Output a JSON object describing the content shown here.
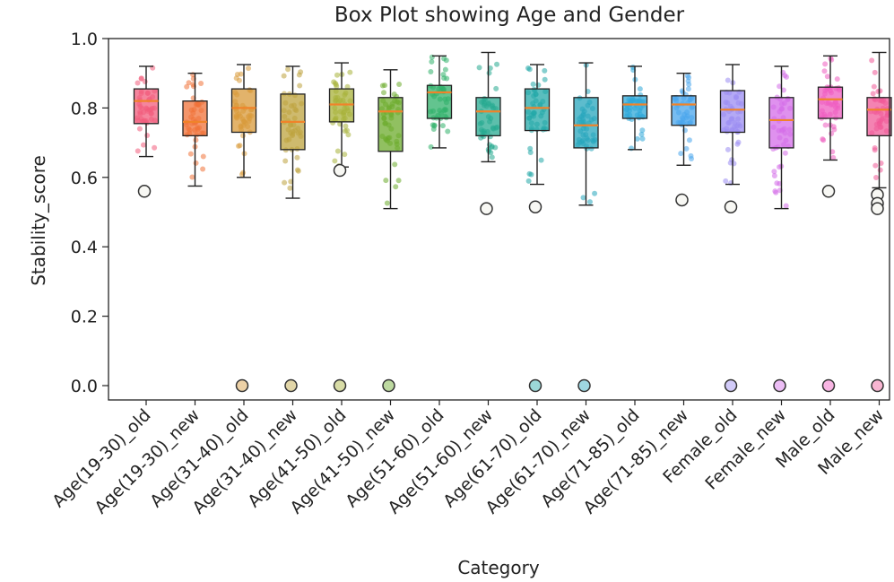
{
  "chart_data": {
    "type": "box",
    "title": "Box Plot showing Age and Gender",
    "xlabel": "Category",
    "ylabel": "Stability_score",
    "ylim": [
      0.0,
      1.0
    ],
    "y_ticks": [
      "0.0",
      "0.2",
      "0.4",
      "0.6",
      "0.8",
      "1.0"
    ],
    "median_color": "#f0832a",
    "categories": [
      {
        "name": "Age(19-30)_old",
        "color": "#f25c7c",
        "whisker_low": 0.66,
        "q1": 0.755,
        "median": 0.82,
        "q3": 0.855,
        "whisker_high": 0.92,
        "outliers": [
          0.56
        ],
        "zero_outliers": false
      },
      {
        "name": "Age(19-30)_new",
        "color": "#f07238",
        "whisker_low": 0.575,
        "q1": 0.72,
        "median": 0.76,
        "q3": 0.82,
        "whisker_high": 0.9,
        "outliers": [],
        "zero_outliers": false
      },
      {
        "name": "Age(31-40)_old",
        "color": "#d89a3a",
        "whisker_low": 0.6,
        "q1": 0.73,
        "median": 0.8,
        "q3": 0.855,
        "whisker_high": 0.925,
        "outliers": [],
        "zero_outliers": true
      },
      {
        "name": "Age(31-40)_new",
        "color": "#bea33e",
        "whisker_low": 0.54,
        "q1": 0.68,
        "median": 0.76,
        "q3": 0.84,
        "whisker_high": 0.92,
        "outliers": [],
        "zero_outliers": true
      },
      {
        "name": "Age(41-50)_old",
        "color": "#a8b23a",
        "whisker_low": 0.63,
        "q1": 0.76,
        "median": 0.81,
        "q3": 0.855,
        "whisker_high": 0.93,
        "outliers": [
          0.62
        ],
        "zero_outliers": true
      },
      {
        "name": "Age(41-50)_new",
        "color": "#6cab2c",
        "whisker_low": 0.51,
        "q1": 0.675,
        "median": 0.79,
        "q3": 0.83,
        "whisker_high": 0.91,
        "outliers": [],
        "zero_outliers": true
      },
      {
        "name": "Age(51-60)_old",
        "color": "#2fb06a",
        "whisker_low": 0.685,
        "q1": 0.77,
        "median": 0.845,
        "q3": 0.865,
        "whisker_high": 0.95,
        "outliers": [],
        "zero_outliers": false
      },
      {
        "name": "Age(51-60)_new",
        "color": "#27aa90",
        "whisker_low": 0.645,
        "q1": 0.72,
        "median": 0.79,
        "q3": 0.83,
        "whisker_high": 0.96,
        "outliers": [
          0.51
        ],
        "zero_outliers": false
      },
      {
        "name": "Age(61-70)_old",
        "color": "#23a8a8",
        "whisker_low": 0.58,
        "q1": 0.735,
        "median": 0.8,
        "q3": 0.855,
        "whisker_high": 0.925,
        "outliers": [
          0.515
        ],
        "zero_outliers": true
      },
      {
        "name": "Age(61-70)_new",
        "color": "#27a6bc",
        "whisker_low": 0.52,
        "q1": 0.685,
        "median": 0.75,
        "q3": 0.83,
        "whisker_high": 0.93,
        "outliers": [],
        "zero_outliers": true
      },
      {
        "name": "Age(71-85)_old",
        "color": "#2fa8d8",
        "whisker_low": 0.68,
        "q1": 0.77,
        "median": 0.81,
        "q3": 0.835,
        "whisker_high": 0.92,
        "outliers": [],
        "zero_outliers": false
      },
      {
        "name": "Age(71-85)_new",
        "color": "#49a6ec",
        "whisker_low": 0.635,
        "q1": 0.75,
        "median": 0.81,
        "q3": 0.835,
        "whisker_high": 0.9,
        "outliers": [
          0.535
        ],
        "zero_outliers": false
      },
      {
        "name": "Female_old",
        "color": "#9b8cf2",
        "whisker_low": 0.58,
        "q1": 0.73,
        "median": 0.795,
        "q3": 0.85,
        "whisker_high": 0.925,
        "outliers": [
          0.515
        ],
        "zero_outliers": true
      },
      {
        "name": "Female_new",
        "color": "#d46ce8",
        "whisker_low": 0.51,
        "q1": 0.685,
        "median": 0.765,
        "q3": 0.83,
        "whisker_high": 0.92,
        "outliers": [],
        "zero_outliers": true
      },
      {
        "name": "Male_old",
        "color": "#ef5cc0",
        "whisker_low": 0.65,
        "q1": 0.77,
        "median": 0.825,
        "q3": 0.86,
        "whisker_high": 0.95,
        "outliers": [
          0.56
        ],
        "zero_outliers": true
      },
      {
        "name": "Male_new",
        "color": "#f05a98",
        "whisker_low": 0.57,
        "q1": 0.72,
        "median": 0.795,
        "q3": 0.83,
        "whisker_high": 0.96,
        "outliers": [
          0.55,
          0.525,
          0.51
        ],
        "zero_outliers": true
      }
    ]
  }
}
